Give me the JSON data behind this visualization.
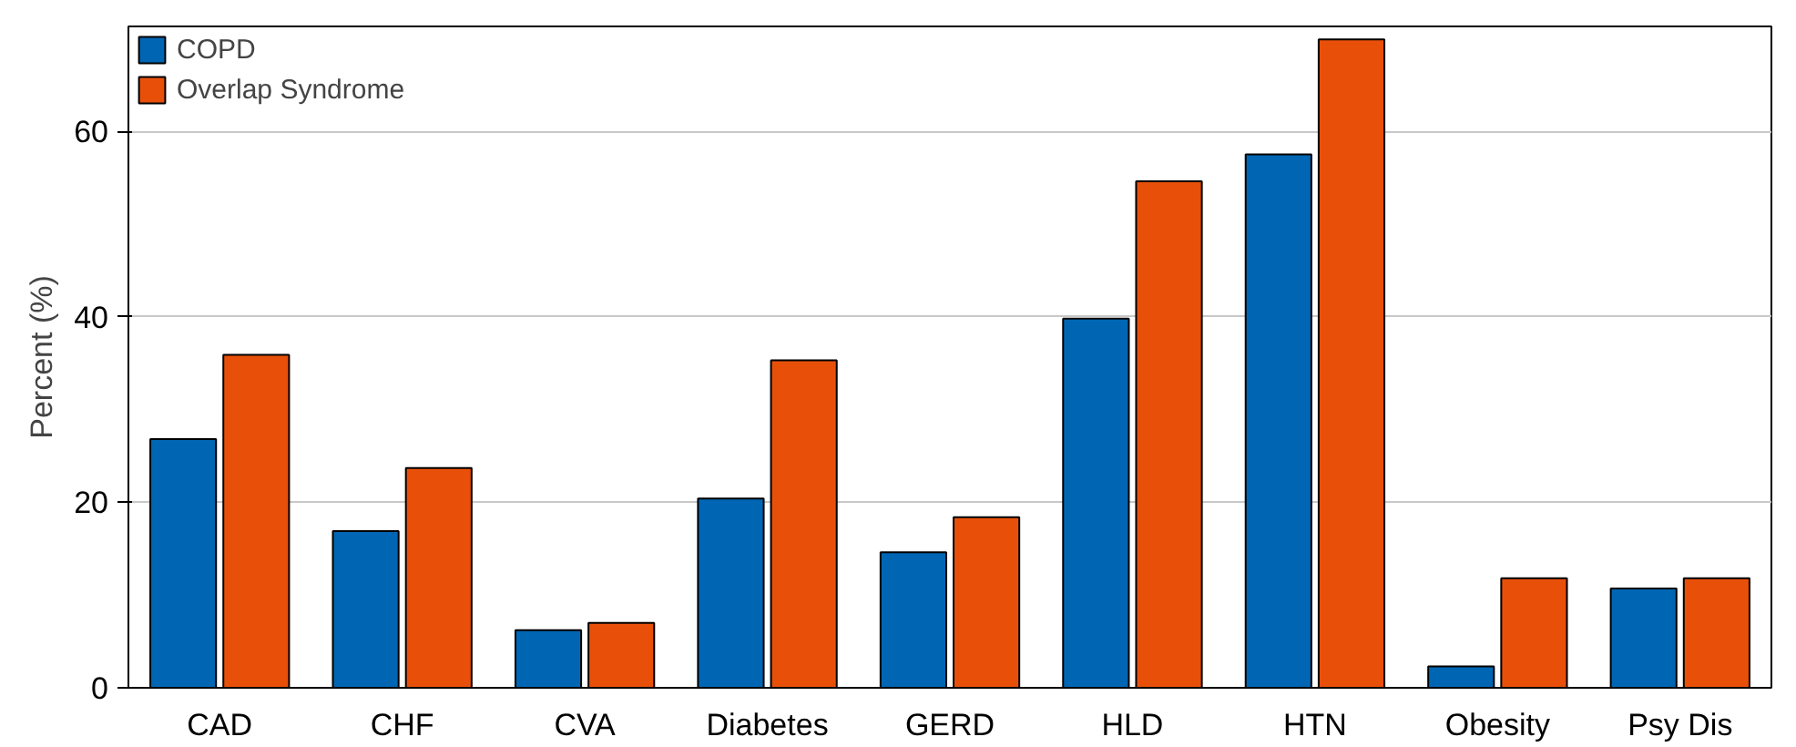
{
  "chart_data": {
    "type": "bar",
    "ylabel": "Percent (%)",
    "categories": [
      "CAD",
      "CHF",
      "CVA",
      "Diabetes",
      "GERD",
      "HLD",
      "HTN",
      "Obesity",
      "Psy Dis"
    ],
    "series": [
      {
        "name": "COPD",
        "color": "#0066b3",
        "values": [
          26.8,
          16.9,
          6.2,
          20.4,
          14.6,
          39.8,
          57.5,
          2.3,
          10.7
        ]
      },
      {
        "name": "Overlap Syndrome",
        "color": "#e8500a",
        "values": [
          35.9,
          23.7,
          7.0,
          35.3,
          18.4,
          54.6,
          69.9,
          11.8,
          11.8
        ]
      }
    ],
    "ylim": [
      0,
      71.3
    ],
    "yticks": [
      0,
      20,
      40,
      60
    ],
    "grid": "y",
    "legend": "top left"
  }
}
